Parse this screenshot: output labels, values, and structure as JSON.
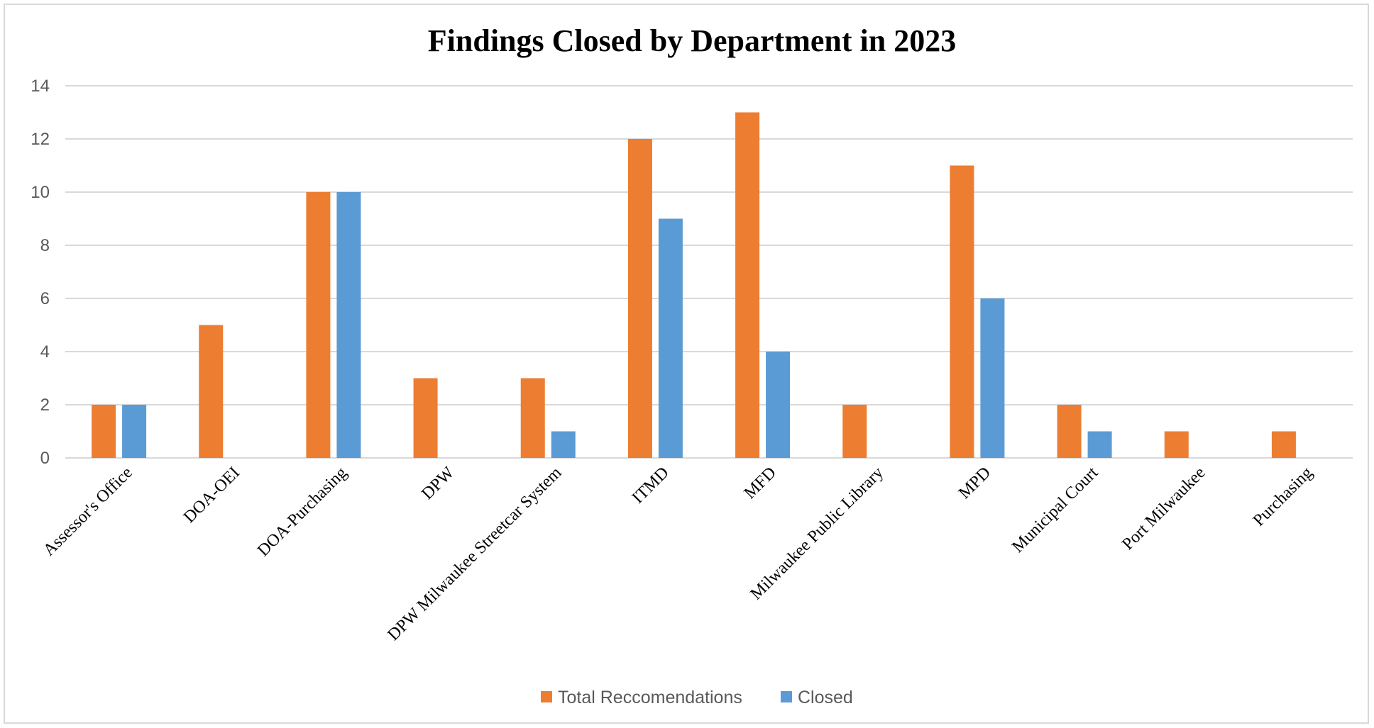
{
  "chart_data": {
    "type": "bar",
    "title": "Findings Closed by Department in 2023",
    "categories": [
      "Assessor's Office",
      "DOA-OEI",
      "DOA-Purchasing",
      "DPW",
      "DPW Milwaukee Streetcar System",
      "ITMD",
      "MFD",
      "Milwaukee Public Library",
      "MPD",
      "Municipal Court",
      "Port Milwaukee",
      "Purchasing"
    ],
    "series": [
      {
        "name": "Total Reccomendations",
        "color": "#ED7D31",
        "values": [
          2,
          5,
          10,
          3,
          3,
          12,
          13,
          2,
          11,
          2,
          1,
          1
        ]
      },
      {
        "name": "Closed",
        "color": "#5B9BD5",
        "values": [
          2,
          0,
          10,
          0,
          1,
          9,
          4,
          0,
          6,
          1,
          0,
          0
        ]
      }
    ],
    "ylim": [
      0,
      14
    ],
    "yticks": [
      0,
      2,
      4,
      6,
      8,
      10,
      12,
      14
    ],
    "grid": true,
    "legend": "bottom-center"
  }
}
